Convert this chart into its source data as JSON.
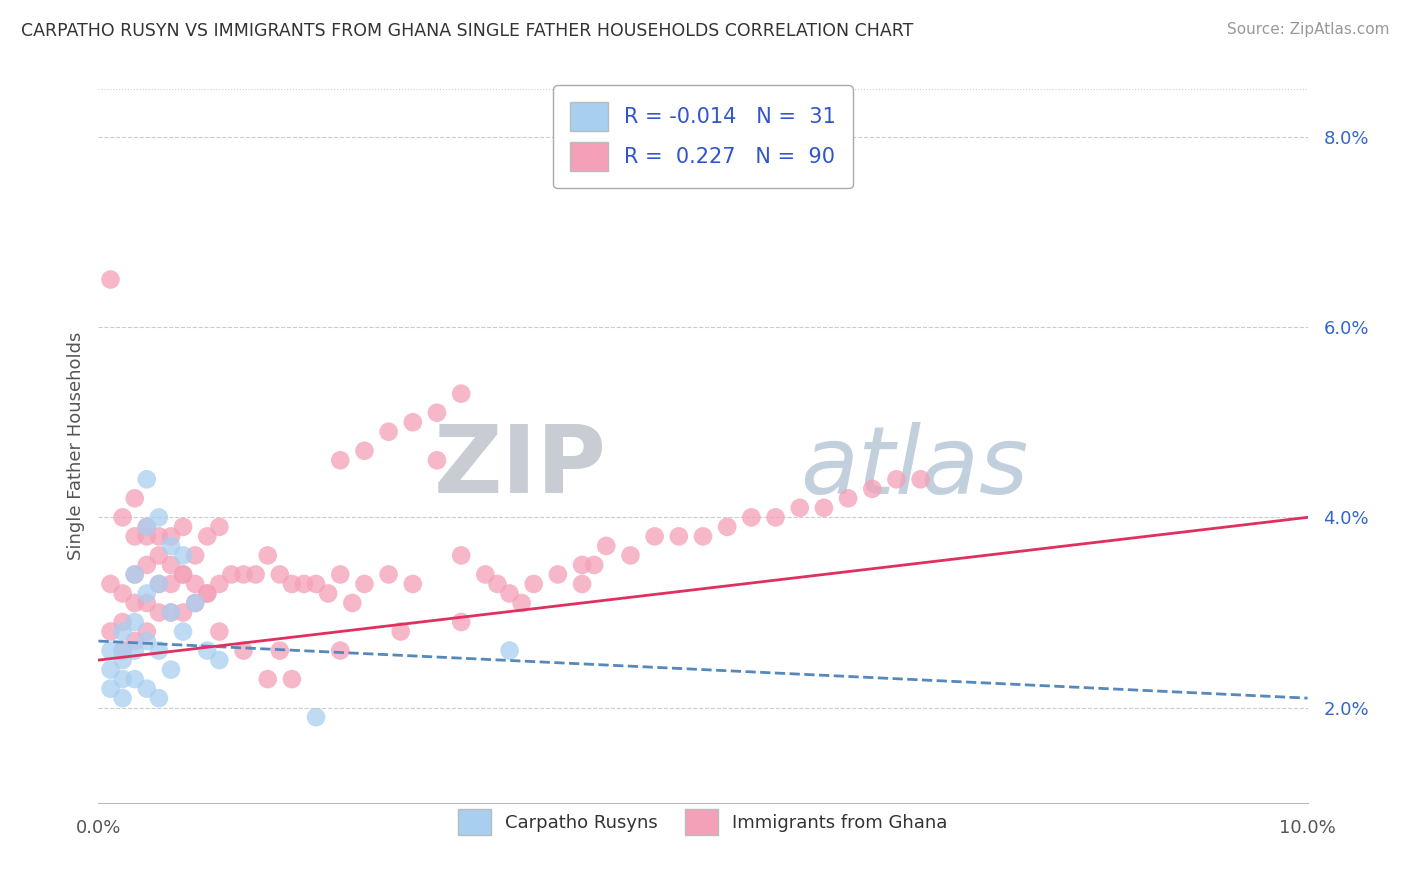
{
  "title": "CARPATHO RUSYN VS IMMIGRANTS FROM GHANA SINGLE FATHER HOUSEHOLDS CORRELATION CHART",
  "source": "Source: ZipAtlas.com",
  "ylabel": "Single Father Households",
  "xlim": [
    0.0,
    0.1
  ],
  "ylim": [
    0.01,
    0.085
  ],
  "y_ticks_right": [
    0.02,
    0.04,
    0.06,
    0.08
  ],
  "legend_R1": "-0.014",
  "legend_N1": "31",
  "legend_R2": "0.227",
  "legend_N2": "90",
  "blue_color": "#a8cff0",
  "pink_color": "#f4a0b8",
  "line_blue_color": "#5588bb",
  "line_pink_color": "#e03060",
  "blue_x": [
    0.001,
    0.001,
    0.001,
    0.002,
    0.002,
    0.002,
    0.002,
    0.002,
    0.003,
    0.003,
    0.003,
    0.003,
    0.004,
    0.004,
    0.004,
    0.004,
    0.004,
    0.005,
    0.005,
    0.005,
    0.005,
    0.006,
    0.006,
    0.006,
    0.007,
    0.007,
    0.008,
    0.009,
    0.01,
    0.018,
    0.034
  ],
  "blue_y": [
    0.026,
    0.024,
    0.022,
    0.028,
    0.026,
    0.025,
    0.023,
    0.021,
    0.034,
    0.029,
    0.026,
    0.023,
    0.044,
    0.039,
    0.032,
    0.027,
    0.022,
    0.04,
    0.033,
    0.026,
    0.021,
    0.037,
    0.03,
    0.024,
    0.036,
    0.028,
    0.031,
    0.026,
    0.025,
    0.019,
    0.026
  ],
  "pink_x": [
    0.001,
    0.001,
    0.001,
    0.002,
    0.002,
    0.002,
    0.002,
    0.003,
    0.003,
    0.003,
    0.003,
    0.003,
    0.004,
    0.004,
    0.004,
    0.004,
    0.005,
    0.005,
    0.005,
    0.006,
    0.006,
    0.006,
    0.007,
    0.007,
    0.007,
    0.008,
    0.008,
    0.009,
    0.009,
    0.01,
    0.01,
    0.011,
    0.012,
    0.013,
    0.014,
    0.015,
    0.016,
    0.017,
    0.018,
    0.019,
    0.02,
    0.021,
    0.022,
    0.024,
    0.026,
    0.028,
    0.03,
    0.032,
    0.033,
    0.034,
    0.036,
    0.038,
    0.04,
    0.041,
    0.042,
    0.044,
    0.046,
    0.048,
    0.05,
    0.052,
    0.054,
    0.056,
    0.058,
    0.06,
    0.062,
    0.064,
    0.066,
    0.068,
    0.02,
    0.022,
    0.024,
    0.026,
    0.028,
    0.03,
    0.01,
    0.012,
    0.014,
    0.016,
    0.004,
    0.005,
    0.006,
    0.007,
    0.008,
    0.009,
    0.015,
    0.02,
    0.025,
    0.03,
    0.035,
    0.04
  ],
  "pink_y": [
    0.028,
    0.033,
    0.065,
    0.026,
    0.029,
    0.032,
    0.04,
    0.027,
    0.031,
    0.034,
    0.038,
    0.042,
    0.028,
    0.031,
    0.035,
    0.039,
    0.03,
    0.033,
    0.038,
    0.03,
    0.033,
    0.038,
    0.03,
    0.034,
    0.039,
    0.031,
    0.036,
    0.032,
    0.038,
    0.033,
    0.039,
    0.034,
    0.034,
    0.034,
    0.036,
    0.034,
    0.033,
    0.033,
    0.033,
    0.032,
    0.034,
    0.031,
    0.033,
    0.034,
    0.033,
    0.046,
    0.036,
    0.034,
    0.033,
    0.032,
    0.033,
    0.034,
    0.035,
    0.035,
    0.037,
    0.036,
    0.038,
    0.038,
    0.038,
    0.039,
    0.04,
    0.04,
    0.041,
    0.041,
    0.042,
    0.043,
    0.044,
    0.044,
    0.046,
    0.047,
    0.049,
    0.05,
    0.051,
    0.053,
    0.028,
    0.026,
    0.023,
    0.023,
    0.038,
    0.036,
    0.035,
    0.034,
    0.033,
    0.032,
    0.026,
    0.026,
    0.028,
    0.029,
    0.031,
    0.033
  ]
}
